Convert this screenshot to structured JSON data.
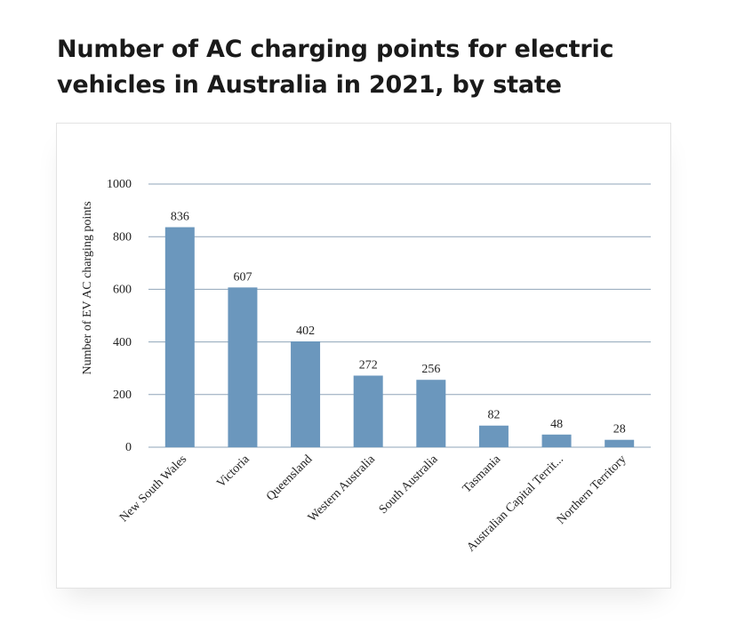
{
  "page": {
    "title": "Number of AC charging points for electric vehicles in Australia in 2021, by state"
  },
  "chart_data": {
    "type": "bar",
    "categories": [
      "New South Wales",
      "Victoria",
      "Queensland",
      "Western Australia",
      "South Australia",
      "Tasmania",
      "Australian Capital Territ...",
      "Northern Territory"
    ],
    "values": [
      836,
      607,
      402,
      272,
      256,
      82,
      48,
      28
    ],
    "title": "",
    "xlabel": "",
    "ylabel": "Number of EV AC charging points",
    "ylim": [
      0,
      1000
    ],
    "yticks": [
      0,
      200,
      400,
      600,
      800,
      1000
    ],
    "grid": true,
    "data_labels": true,
    "bar_color": "#6b97bd",
    "grid_color": "#8fa4b8"
  }
}
